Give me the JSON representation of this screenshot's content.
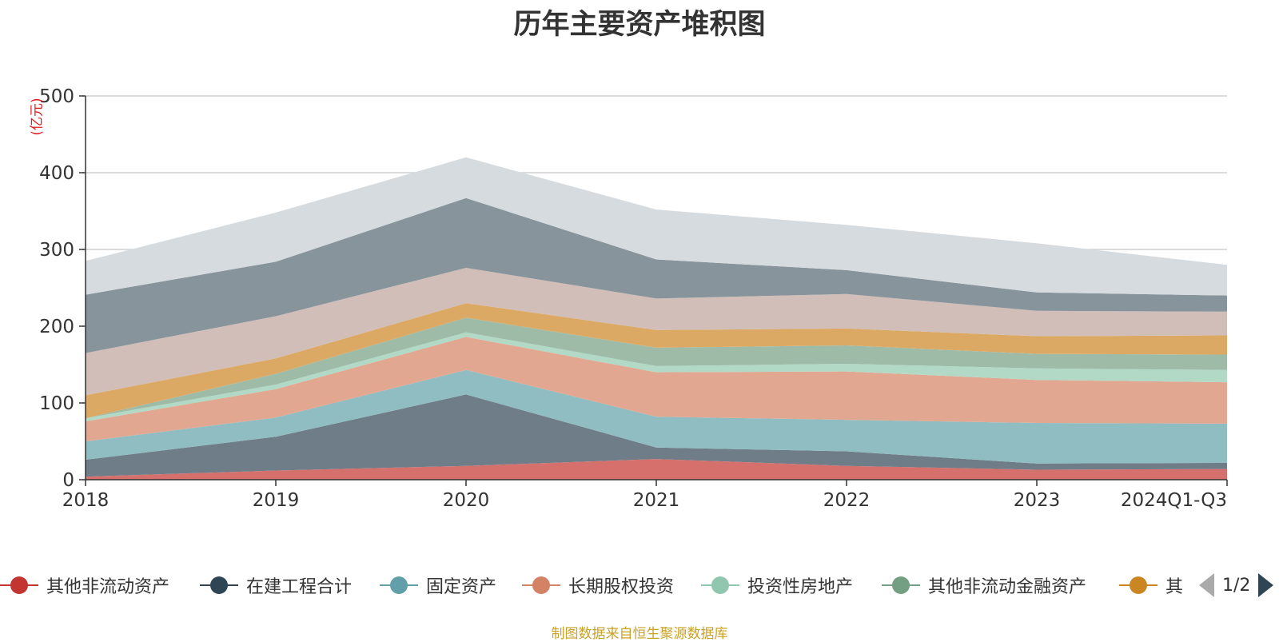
{
  "title": "历年主要资产堆积图",
  "unit_label": "(亿元)",
  "source_note": "制图数据来自恒生聚源数据库",
  "legend_pager": "1/2",
  "chart_data": {
    "type": "area",
    "stacked": true,
    "title": "历年主要资产堆积图",
    "ylabel": "(亿元)",
    "ylim": [
      0,
      500
    ],
    "yticks": [
      0,
      100,
      200,
      300,
      400,
      500
    ],
    "grid": true,
    "legend_position": "bottom",
    "categories": [
      "2018",
      "2019",
      "2020",
      "2021",
      "2022",
      "2023",
      "2024Q1-Q3"
    ],
    "series": [
      {
        "name": "其他非流动资产",
        "color": "#c23531",
        "fill": "#d6706d",
        "values": [
          4,
          12,
          18,
          27,
          18,
          13,
          14
        ]
      },
      {
        "name": "在建工程合计",
        "color": "#2f4554",
        "fill": "#6e7d87",
        "values": [
          22,
          44,
          93,
          15,
          19,
          8,
          8
        ]
      },
      {
        "name": "固定资产",
        "color": "#61a0a8",
        "fill": "#90bdc2",
        "values": [
          24,
          25,
          32,
          40,
          41,
          53,
          51
        ]
      },
      {
        "name": "长期股权投资",
        "color": "#d48265",
        "fill": "#e1a791",
        "values": [
          26,
          37,
          43,
          58,
          63,
          56,
          54
        ]
      },
      {
        "name": "投资性房地产",
        "color": "#91c7ae",
        "fill": "#b2d8c6",
        "values": [
          4,
          6,
          6,
          8,
          10,
          15,
          16
        ]
      },
      {
        "name": "其他非流动金融资产",
        "color": "#749f83",
        "fill": "#9ebba8",
        "values": [
          0,
          14,
          19,
          24,
          24,
          19,
          20
        ]
      },
      {
        "name": "其",
        "color": "#ca8622",
        "fill": "#dba964",
        "values": [
          30,
          20,
          19,
          23,
          22,
          23,
          25
        ]
      },
      {
        "values": [
          55,
          55,
          46,
          41,
          45,
          33,
          31
        ],
        "color": "#bda29a",
        "fill": "#d1beb8"
      },
      {
        "values": [
          76,
          71,
          91,
          51,
          31,
          24,
          21
        ],
        "color": "#546570",
        "fill": "#87949b"
      },
      {
        "values": [
          44,
          64,
          53,
          65,
          59,
          64,
          40
        ],
        "color": "#c4ccd3",
        "fill": "#d6dbe0"
      }
    ]
  }
}
